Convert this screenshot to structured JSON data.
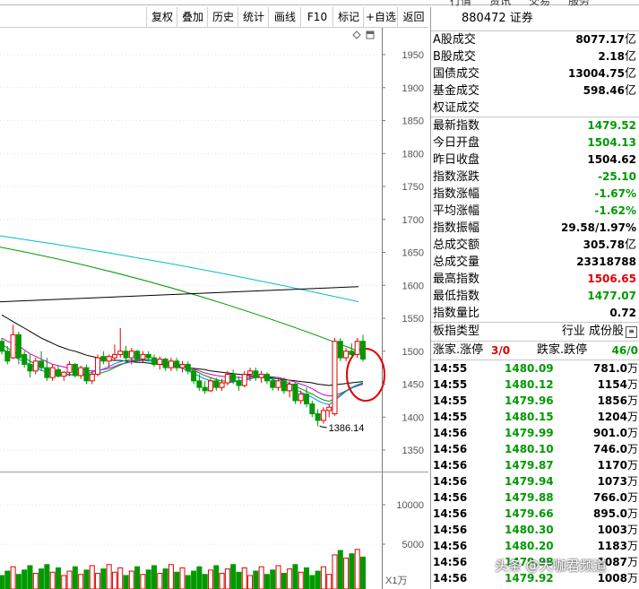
{
  "header_strip": [
    "行情",
    "资讯",
    "交易",
    "服务"
  ],
  "toolbar": [
    "复权",
    "叠加",
    "历史",
    "统计",
    "画线",
    "F10",
    "标记",
    "+自选",
    "返回"
  ],
  "chart_data": {
    "type": "candlestick",
    "price_ticks": [
      1950,
      1900,
      1850,
      1800,
      1750,
      1700,
      1650,
      1600,
      1550,
      1500,
      1450,
      1400,
      1350
    ],
    "volume_ticks": [
      10000,
      5000
    ],
    "volume_unit": "X1万",
    "low_annotation": "1386.14",
    "ohlc": [
      [
        1515,
        1520,
        1495,
        1500
      ],
      [
        1500,
        1508,
        1480,
        1485
      ],
      [
        1490,
        1540,
        1488,
        1525
      ],
      [
        1525,
        1530,
        1480,
        1490
      ],
      [
        1495,
        1500,
        1475,
        1480
      ],
      [
        1480,
        1495,
        1460,
        1470
      ],
      [
        1470,
        1490,
        1465,
        1485
      ],
      [
        1485,
        1500,
        1470,
        1475
      ],
      [
        1475,
        1490,
        1455,
        1460
      ],
      [
        1460,
        1480,
        1455,
        1475
      ],
      [
        1472,
        1478,
        1460,
        1462
      ],
      [
        1462,
        1470,
        1455,
        1468
      ],
      [
        1468,
        1485,
        1462,
        1480
      ],
      [
        1480,
        1482,
        1460,
        1463
      ],
      [
        1463,
        1478,
        1458,
        1475
      ],
      [
        1475,
        1480,
        1450,
        1455
      ],
      [
        1455,
        1470,
        1450,
        1465
      ],
      [
        1465,
        1495,
        1462,
        1490
      ],
      [
        1492,
        1500,
        1480,
        1485
      ],
      [
        1485,
        1495,
        1475,
        1492
      ],
      [
        1490,
        1510,
        1485,
        1495
      ],
      [
        1495,
        1535,
        1490,
        1500
      ],
      [
        1500,
        1508,
        1485,
        1490
      ],
      [
        1490,
        1505,
        1480,
        1500
      ],
      [
        1500,
        1502,
        1485,
        1488
      ],
      [
        1488,
        1500,
        1482,
        1495
      ],
      [
        1495,
        1500,
        1485,
        1490
      ],
      [
        1490,
        1495,
        1476,
        1480
      ],
      [
        1480,
        1492,
        1472,
        1488
      ],
      [
        1488,
        1490,
        1470,
        1475
      ],
      [
        1475,
        1490,
        1470,
        1485
      ],
      [
        1485,
        1490,
        1470,
        1475
      ],
      [
        1475,
        1485,
        1468,
        1480
      ],
      [
        1480,
        1485,
        1465,
        1470
      ],
      [
        1470,
        1475,
        1450,
        1455
      ],
      [
        1455,
        1465,
        1440,
        1445
      ],
      [
        1445,
        1455,
        1435,
        1440
      ],
      [
        1440,
        1460,
        1438,
        1455
      ],
      [
        1455,
        1460,
        1440,
        1445
      ],
      [
        1445,
        1458,
        1440,
        1452
      ],
      [
        1452,
        1470,
        1448,
        1465
      ],
      [
        1465,
        1472,
        1450,
        1455
      ],
      [
        1455,
        1462,
        1440,
        1448
      ],
      [
        1448,
        1470,
        1445,
        1465
      ],
      [
        1465,
        1475,
        1455,
        1470
      ],
      [
        1470,
        1475,
        1455,
        1460
      ],
      [
        1460,
        1470,
        1452,
        1465
      ],
      [
        1465,
        1468,
        1450,
        1455
      ],
      [
        1455,
        1462,
        1440,
        1445
      ],
      [
        1445,
        1460,
        1440,
        1455
      ],
      [
        1455,
        1460,
        1435,
        1440
      ],
      [
        1440,
        1455,
        1430,
        1450
      ],
      [
        1450,
        1452,
        1420,
        1425
      ],
      [
        1425,
        1440,
        1420,
        1435
      ],
      [
        1435,
        1445,
        1415,
        1420
      ],
      [
        1420,
        1425,
        1400,
        1405
      ],
      [
        1405,
        1412,
        1386,
        1395
      ],
      [
        1395,
        1415,
        1390,
        1410
      ],
      [
        1410,
        1420,
        1400,
        1415
      ],
      [
        1405,
        1520,
        1402,
        1515
      ],
      [
        1515,
        1520,
        1485,
        1490
      ],
      [
        1490,
        1505,
        1485,
        1500
      ],
      [
        1500,
        1512,
        1490,
        1495
      ],
      [
        1495,
        1520,
        1490,
        1515
      ],
      [
        1515,
        1525,
        1484,
        1488
      ]
    ],
    "ma_lines": [
      {
        "color": "#000000",
        "values": [
          1555,
          1550,
          1545,
          1540,
          1535,
          1530,
          1525,
          1520,
          1516,
          1512,
          1508,
          1505,
          1502,
          1500,
          1497,
          1494,
          1492,
          1490,
          1488,
          1487,
          1486,
          1486,
          1485,
          1484,
          1483,
          1483,
          1482,
          1481,
          1480,
          1479,
          1478,
          1477,
          1476,
          1475,
          1474,
          1473,
          1472,
          1470,
          1469,
          1468,
          1467,
          1466,
          1465,
          1464,
          1463,
          1462,
          1461,
          1460,
          1459,
          1458,
          1457,
          1456,
          1455,
          1454,
          1453,
          1452,
          1450,
          1449,
          1448,
          1449,
          1450,
          1451,
          1452,
          1453,
          1454
        ]
      },
      {
        "color": "#cc00cc",
        "values": [
          1520,
          1515,
          1512,
          1508,
          1502,
          1496,
          1492,
          1488,
          1484,
          1480,
          1478,
          1476,
          1474,
          1473,
          1472,
          1471,
          1470,
          1471,
          1472,
          1474,
          1477,
          1480,
          1482,
          1484,
          1485,
          1486,
          1487,
          1486,
          1485,
          1483,
          1481,
          1480,
          1478,
          1476,
          1473,
          1470,
          1467,
          1465,
          1463,
          1462,
          1461,
          1461,
          1460,
          1460,
          1461,
          1462,
          1462,
          1462,
          1461,
          1460,
          1458,
          1456,
          1453,
          1450,
          1447,
          1443,
          1438,
          1434,
          1432,
          1433,
          1436,
          1440,
          1444,
          1447,
          1450
        ]
      },
      {
        "color": "#009900",
        "values": [
          1510,
          1505,
          1500,
          1495,
          1490,
          1485,
          1480,
          1476,
          1473,
          1470,
          1468,
          1466,
          1465,
          1464,
          1464,
          1464,
          1465,
          1466,
          1468,
          1471,
          1475,
          1479,
          1483,
          1485,
          1486,
          1487,
          1487,
          1486,
          1485,
          1484,
          1482,
          1480,
          1477,
          1474,
          1471,
          1467,
          1463,
          1460,
          1457,
          1455,
          1454,
          1454,
          1455,
          1456,
          1458,
          1460,
          1461,
          1461,
          1460,
          1458,
          1455,
          1451,
          1447,
          1443,
          1439,
          1435,
          1430,
          1426,
          1424,
          1428,
          1434,
          1440,
          1445,
          1449,
          1452
        ]
      },
      {
        "color": "#0088ff",
        "values": [
          1505,
          1498,
          1492,
          1488,
          1484,
          1480,
          1475,
          1471,
          1468,
          1466,
          1465,
          1464,
          1464,
          1464,
          1465,
          1466,
          1468,
          1470,
          1473,
          1477,
          1481,
          1484,
          1486,
          1487,
          1487,
          1486,
          1485,
          1484,
          1482,
          1480,
          1478,
          1476,
          1474,
          1470,
          1466,
          1462,
          1458,
          1455,
          1453,
          1452,
          1452,
          1453,
          1455,
          1457,
          1459,
          1460,
          1460,
          1459,
          1457,
          1454,
          1450,
          1446,
          1442,
          1438,
          1434,
          1430,
          1425,
          1421,
          1419,
          1425,
          1432,
          1439,
          1444,
          1448,
          1451
        ]
      }
    ],
    "long_ma": [
      {
        "color": "#009900",
        "from": [
          1658,
          1650
        ],
        "to": [
          1500,
          1500
        ]
      },
      {
        "color": "#00bbcc",
        "from": [
          1675,
          1680
        ],
        "to": [
          1575,
          1580
        ]
      },
      {
        "color": "#000000",
        "from": [
          1575,
          1580
        ],
        "to": [
          1598,
          1600
        ]
      }
    ]
  },
  "panel": {
    "title": "880472 证券",
    "rows1": [
      {
        "label": "A股成交",
        "value": "8077.17",
        "unit": "亿",
        "cls": "black"
      },
      {
        "label": "B股成交",
        "value": "2.18",
        "unit": "亿",
        "cls": "black"
      },
      {
        "label": "国债成交",
        "value": "13004.75",
        "unit": "亿",
        "cls": "black"
      },
      {
        "label": "基金成交",
        "value": "598.46",
        "unit": "亿",
        "cls": "black"
      },
      {
        "label": "权证成交",
        "value": "",
        "unit": "",
        "cls": "black"
      }
    ],
    "rows2": [
      {
        "label": "最新指数",
        "value": "1479.52",
        "unit": "",
        "cls": "green"
      },
      {
        "label": "今日开盘",
        "value": "1504.13",
        "unit": "",
        "cls": "green"
      },
      {
        "label": "昨日收盘",
        "value": "1504.62",
        "unit": "",
        "cls": "black"
      },
      {
        "label": "指数涨跌",
        "value": "-25.10",
        "unit": "",
        "cls": "green"
      },
      {
        "label": "指数涨幅",
        "value": "-1.67%",
        "unit": "",
        "cls": "green"
      },
      {
        "label": "平均涨幅",
        "value": "-1.62%",
        "unit": "",
        "cls": "green"
      },
      {
        "label": "指数振幅",
        "value": "29.58/1.97%",
        "unit": "",
        "cls": "black"
      },
      {
        "label": "总成交额",
        "value": "305.78",
        "unit": "亿",
        "cls": "black"
      },
      {
        "label": "总成交量",
        "value": "23318788",
        "unit": "",
        "cls": "black"
      },
      {
        "label": "最高指数",
        "value": "1506.65",
        "unit": "",
        "cls": "red"
      },
      {
        "label": "最低指数",
        "value": "1477.07",
        "unit": "",
        "cls": "green"
      },
      {
        "label": "指数量比",
        "value": "0.72",
        "unit": "",
        "cls": "black"
      }
    ],
    "board_type_label": "板指类型",
    "board_type_value": "行业 成份股",
    "up_label": "涨家.涨停",
    "up_value": "3/0",
    "down_label": "跌家.跌停",
    "down_value": "46/0",
    "ticks": [
      {
        "t": "14:55",
        "p": "1480.09",
        "v": "781.0",
        "u": "万"
      },
      {
        "t": "14:55",
        "p": "1480.12",
        "v": "1154",
        "u": "万"
      },
      {
        "t": "14:55",
        "p": "1479.96",
        "v": "1856",
        "u": "万"
      },
      {
        "t": "14:55",
        "p": "1480.15",
        "v": "1204",
        "u": "万"
      },
      {
        "t": "14:56",
        "p": "1479.99",
        "v": "901.0",
        "u": "万"
      },
      {
        "t": "14:56",
        "p": "1480.10",
        "v": "746.0",
        "u": "万"
      },
      {
        "t": "14:56",
        "p": "1479.87",
        "v": "1170",
        "u": "万"
      },
      {
        "t": "14:56",
        "p": "1479.94",
        "v": "1073",
        "u": "万"
      },
      {
        "t": "14:56",
        "p": "1479.88",
        "v": "766.0",
        "u": "万"
      },
      {
        "t": "14:56",
        "p": "1479.66",
        "v": "895.0",
        "u": "万"
      },
      {
        "t": "14:56",
        "p": "1480.30",
        "v": "1003",
        "u": "万"
      },
      {
        "t": "14:56",
        "p": "1480.20",
        "v": "1183",
        "u": "万"
      },
      {
        "t": "14:56",
        "p": "1479.98",
        "v": "1087",
        "u": "万"
      },
      {
        "t": "14:56",
        "p": "1479.92",
        "v": "1008",
        "u": "万"
      }
    ]
  },
  "watermark": "头条 @大咖君频道"
}
